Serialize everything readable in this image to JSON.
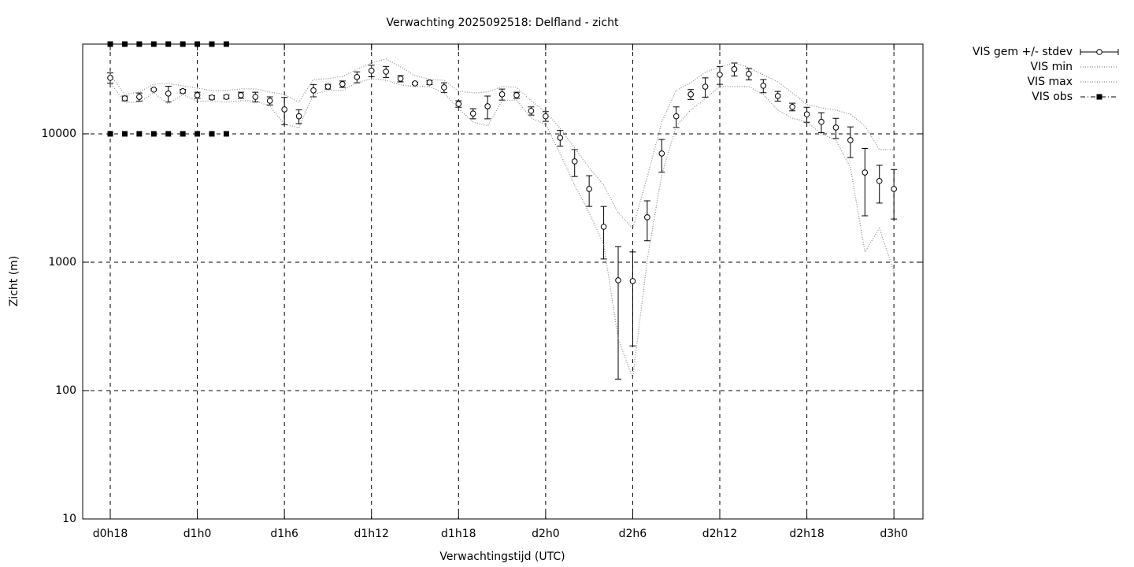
{
  "chart_data": {
    "type": "errorline",
    "title": "Verwachting 2025092518: Delfland - zicht",
    "x_label": "Verwachtingstijd (UTC)",
    "y_label": "Zicht (m)",
    "log_y": true,
    "grid": true,
    "legend": "outside-right",
    "xlim": [
      16.1,
      74
    ],
    "ylim": [
      10,
      50000
    ],
    "xticks": [
      {
        "value": 18,
        "label": "d0h18"
      },
      {
        "value": 24,
        "label": "d1h0"
      },
      {
        "value": 30,
        "label": "d1h6"
      },
      {
        "value": 36,
        "label": "d1h12"
      },
      {
        "value": 42,
        "label": "d1h18"
      },
      {
        "value": 48,
        "label": "d2h0"
      },
      {
        "value": 54,
        "label": "d2h6"
      },
      {
        "value": 60,
        "label": "d2h12"
      },
      {
        "value": 66,
        "label": "d2h18"
      },
      {
        "value": 72,
        "label": "d3h0"
      }
    ],
    "yticks": [
      10,
      100,
      1000,
      10000
    ],
    "x": [
      18,
      19,
      20,
      21,
      22,
      23,
      24,
      25,
      26,
      27,
      28,
      29,
      30,
      31,
      32,
      33,
      34,
      35,
      36,
      37,
      38,
      39,
      40,
      41,
      42,
      43,
      44,
      45,
      46,
      47,
      48,
      49,
      50,
      51,
      52,
      53,
      54,
      55,
      56,
      57,
      58,
      59,
      60,
      61,
      62,
      63,
      64,
      65,
      66,
      67,
      68,
      69,
      70,
      71,
      72
    ],
    "series": [
      {
        "name": "VIS gem +/- stdev",
        "color": "#000000",
        "style": "errorbars",
        "values": [
          27300,
          18900,
          19400,
          22100,
          20600,
          21500,
          20000,
          19200,
          19400,
          20000,
          19400,
          18100,
          15500,
          13700,
          21800,
          23300,
          24400,
          27700,
          31000,
          30500,
          26900,
          24700,
          25100,
          23000,
          17100,
          14400,
          16400,
          20300,
          20000,
          15100,
          13700,
          9320,
          6100,
          3720,
          1890,
          723,
          713,
          2240,
          7030,
          13700,
          20300,
          23300,
          28900,
          31900,
          29300,
          23700,
          19700,
          16200,
          14200,
          12400,
          11200,
          8930,
          5000,
          4290,
          3720
        ],
        "errors": [
          2500,
          800,
          1400,
          300,
          2900,
          700,
          1100,
          600,
          600,
          1100,
          1700,
          1300,
          3700,
          1700,
          2400,
          1000,
          1400,
          2700,
          3200,
          3000,
          1500,
          500,
          900,
          2000,
          1000,
          1300,
          3300,
          2000,
          1100,
          1100,
          1200,
          1300,
          1450,
          1000,
          830,
          600,
          490,
          770,
          2000,
          2500,
          1800,
          4000,
          4600,
          3700,
          3000,
          2800,
          1700,
          1100,
          1900,
          2200,
          2000,
          2400,
          2700,
          1400,
          1550
        ]
      },
      {
        "name": "VIS min",
        "color": "#888888",
        "style": "dotted",
        "values": [
          25050,
          17600,
          17600,
          20850,
          17110,
          20260,
          17850,
          18100,
          17600,
          18100,
          18100,
          16400,
          11850,
          11190,
          20260,
          21750,
          21750,
          25050,
          26880,
          26140,
          24010,
          23340,
          23340,
          20850,
          15710,
          12360,
          11520,
          18100,
          18360,
          13260,
          11850,
          7030,
          3990,
          2435,
          1384,
          254,
          125,
          1043,
          4800,
          11520,
          15280,
          18880,
          23340,
          23340,
          23340,
          20260,
          15280,
          13260,
          12360,
          10000,
          8930,
          5450,
          1202,
          1836,
          850
        ]
      },
      {
        "name": "VIS max",
        "color": "#888888",
        "style": "dotted",
        "values": [
          28850,
          20260,
          21150,
          24350,
          24700,
          23670,
          22690,
          21750,
          21750,
          22370,
          22370,
          21150,
          20260,
          17600,
          26500,
          26880,
          28040,
          31850,
          35660,
          38270,
          33220,
          28440,
          26500,
          26140,
          21450,
          20850,
          21150,
          23340,
          23010,
          18100,
          14850,
          11040,
          7750,
          5450,
          3990,
          2435,
          1836,
          4600,
          12360,
          21750,
          25050,
          30100,
          33220,
          35660,
          32760,
          28850,
          25410,
          20850,
          16870,
          15940,
          15280,
          14230,
          11520,
          7540,
          7540
        ]
      },
      {
        "name": "VIS obs",
        "color": "#000000",
        "style": "points",
        "x": [
          18,
          19,
          20,
          21,
          22,
          23,
          24,
          25,
          26,
          18,
          19,
          20,
          21,
          22,
          23,
          24,
          25,
          26
        ],
        "values": [
          50000,
          50000,
          50000,
          50000,
          50000,
          50000,
          50000,
          50000,
          50000,
          10000,
          10000,
          10000,
          10000,
          10000,
          10000,
          10000,
          10000,
          10000
        ]
      }
    ]
  }
}
